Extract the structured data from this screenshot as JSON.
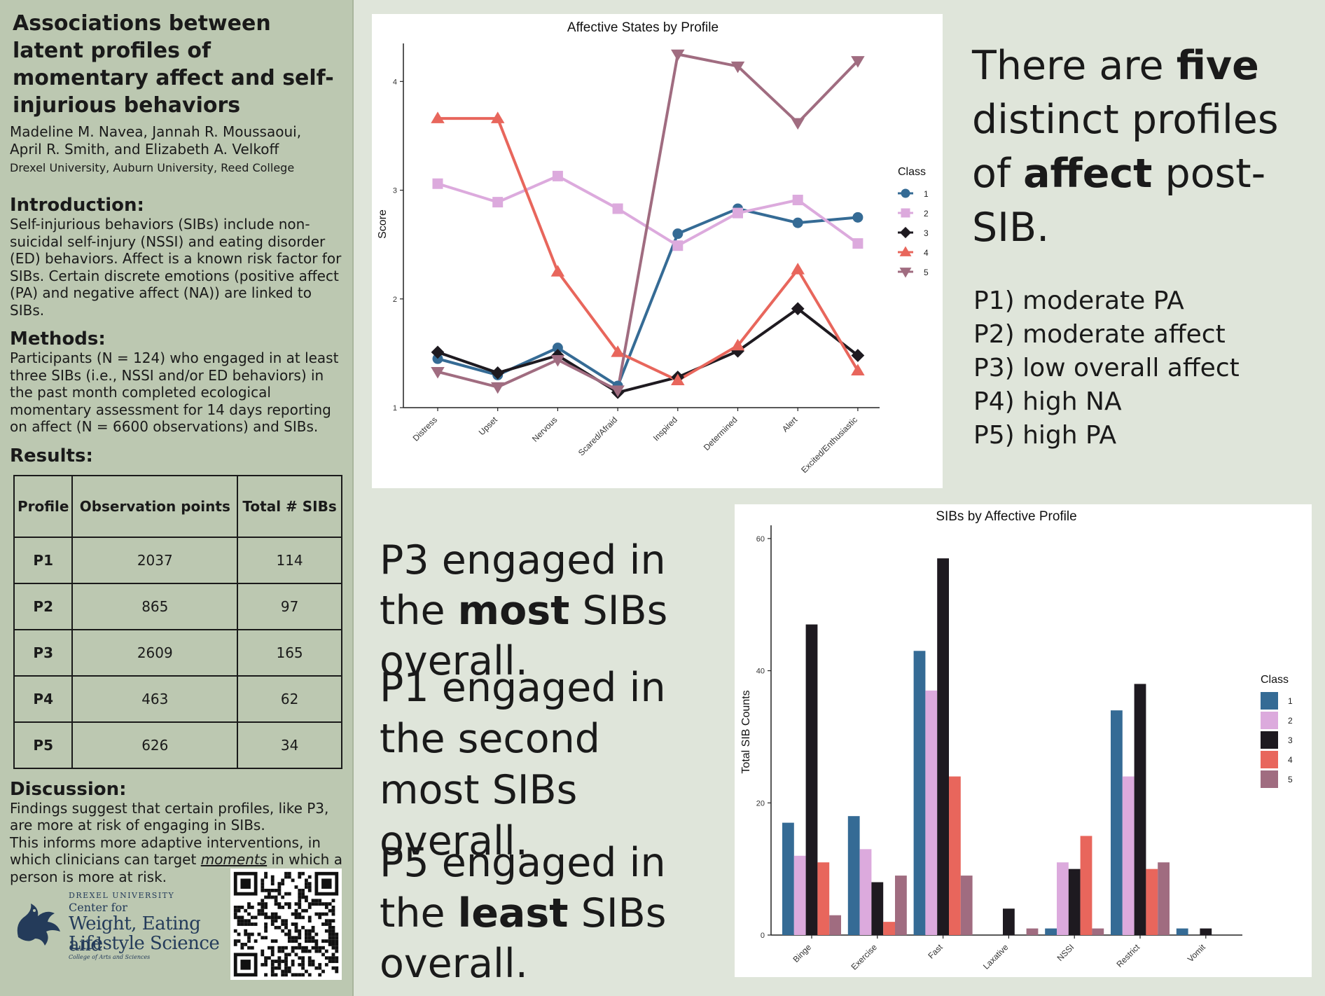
{
  "sidebar": {
    "title": "Associations between latent profiles of momentary affect and self-injurious behaviors",
    "authors_line1": "Madeline M. Navea, Jannah R. Moussaoui,",
    "authors_line2": "April R. Smith, and Elizabeth A. Velkoff",
    "affiliations": "Drexel University, Auburn University, Reed College",
    "introduction_heading": "Introduction:",
    "introduction_text": "Self-injurious behaviors (SIBs) include non-suicidal self-injury (NSSI) and eating disorder (ED) behaviors. Affect is a known risk factor for SIBs. Certain discrete emotions (positive affect (PA) and negative affect (NA)) are linked to SIBs.",
    "methods_heading": "Methods:",
    "methods_text": "Participants (N = 124) who engaged in at least three SIBs (i.e., NSSI and/or ED behaviors) in the past month completed ecological momentary assessment for 14 days reporting on affect (N = 6600 observations) and SIBs.",
    "results_heading": "Results:",
    "results_table": {
      "headers": [
        "Profile",
        "Observation points",
        "Total # SIBs"
      ],
      "rows": [
        [
          "P1",
          "2037",
          "114"
        ],
        [
          "P2",
          "865",
          "97"
        ],
        [
          "P3",
          "2609",
          "165"
        ],
        [
          "P4",
          "463",
          "62"
        ],
        [
          "P5",
          "626",
          "34"
        ]
      ]
    },
    "discussion_heading": "Discussion:",
    "discussion_text_1": "Findings suggest that certain profiles, like P3, are more at risk of engaging in SIBs.",
    "discussion_text_2a": "This informs more adaptive interventions, in which clinicians can target ",
    "discussion_text_2b": "moments",
    "discussion_text_2c": " in which a person is more at risk.",
    "logo": {
      "small": "DREXEL UNIVERSITY",
      "center_for": "Center for",
      "line1": "Weight, Eating and",
      "line2": "Lifestyle Science",
      "college": "College of Arts and Sciences"
    }
  },
  "main": {
    "five_profiles_text": [
      "There are ",
      "five",
      " distinct profiles of ",
      "affect",
      " post-SIB."
    ],
    "profile_list": [
      "P1) moderate PA",
      "P2) moderate affect",
      "P3) low overall affect",
      "P4) high NA",
      "P5) high PA"
    ],
    "finding_p3": [
      "P3 engaged in the ",
      "most",
      " SIBs overall."
    ],
    "finding_p1": "P1 engaged in the second most SIBs overall.",
    "finding_p5": [
      "P5 engaged in the ",
      "least",
      " SIBs overall."
    ]
  },
  "colors": {
    "class1": "#356b95",
    "class2": "#dcaadd",
    "class3": "#1e1a20",
    "class4": "#e8665c",
    "class5": "#a06c80"
  },
  "chart_data": [
    {
      "type": "line",
      "title": "Affective States by Profile",
      "xlabel": "",
      "ylabel": "Score",
      "categories": [
        "Distress",
        "Upset",
        "Nervous",
        "Scared/Afraid",
        "Inspired",
        "Determined",
        "Alert",
        "Excited/Enthusiastic"
      ],
      "ylim": [
        1,
        4.35
      ],
      "yticks": [
        1,
        2,
        3,
        4
      ],
      "legend_title": "Class",
      "legend_position": "right",
      "series": [
        {
          "name": "1",
          "marker": "circle",
          "values": [
            1.45,
            1.3,
            1.55,
            1.2,
            2.6,
            2.83,
            2.7,
            2.75
          ]
        },
        {
          "name": "2",
          "marker": "square",
          "values": [
            3.06,
            2.89,
            3.13,
            2.83,
            2.49,
            2.79,
            2.91,
            2.51
          ]
        },
        {
          "name": "3",
          "marker": "diamond",
          "values": [
            1.51,
            1.32,
            1.48,
            1.14,
            1.28,
            1.52,
            1.91,
            1.48
          ]
        },
        {
          "name": "4",
          "marker": "triangle",
          "values": [
            3.66,
            3.66,
            2.25,
            1.51,
            1.25,
            1.57,
            2.27,
            1.34
          ]
        },
        {
          "name": "5",
          "marker": "triangle-down",
          "values": [
            1.33,
            1.19,
            1.44,
            1.16,
            4.25,
            4.14,
            3.62,
            4.19
          ]
        }
      ]
    },
    {
      "type": "bar",
      "title": "SIBs by Affective Profile",
      "xlabel": "",
      "ylabel": "Total SIB Counts",
      "categories": [
        "Binge",
        "Exercise",
        "Fast",
        "Laxative",
        "NSSI",
        "Restrict",
        "Vomit"
      ],
      "ylim": [
        0,
        62
      ],
      "yticks": [
        0,
        20,
        40,
        60
      ],
      "legend_title": "Class",
      "legend_position": "right",
      "series": [
        {
          "name": "1",
          "values": [
            17,
            18,
            43,
            0,
            1,
            34,
            1
          ]
        },
        {
          "name": "2",
          "values": [
            12,
            13,
            37,
            0,
            11,
            24,
            0
          ]
        },
        {
          "name": "3",
          "values": [
            47,
            8,
            57,
            4,
            10,
            38,
            1
          ]
        },
        {
          "name": "4",
          "values": [
            11,
            2,
            24,
            0,
            15,
            10,
            0
          ]
        },
        {
          "name": "5",
          "values": [
            3,
            9,
            9,
            1,
            1,
            11,
            0
          ]
        }
      ]
    }
  ]
}
